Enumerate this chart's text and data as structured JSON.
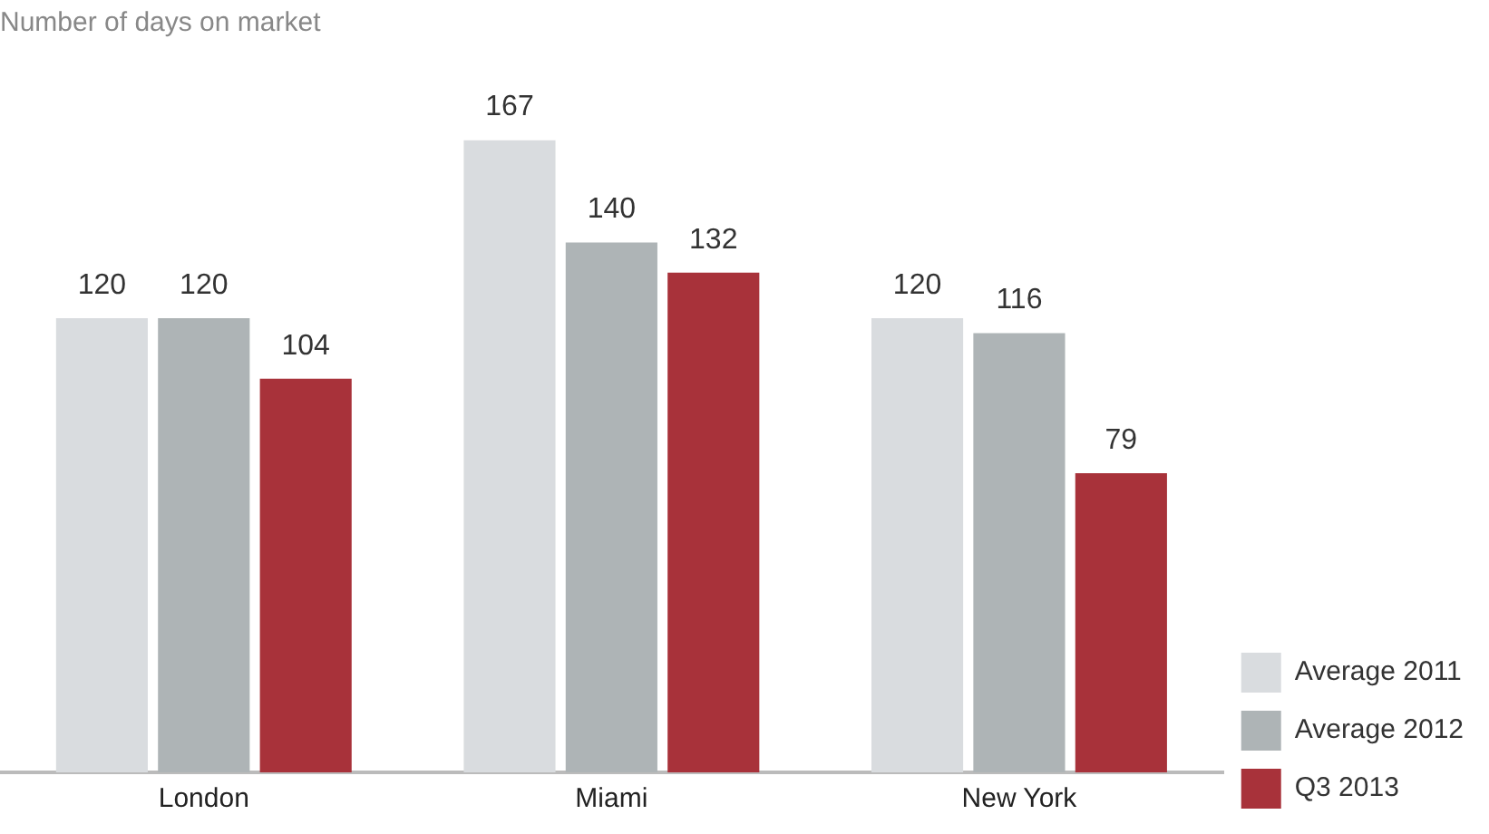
{
  "chart_data": {
    "type": "bar",
    "title": "Number of days on market",
    "categories": [
      "London",
      "Miami",
      "New York"
    ],
    "series": [
      {
        "name": "Average 2011",
        "color": "#d9dcdf",
        "values": [
          120,
          167,
          120
        ]
      },
      {
        "name": "Average 2012",
        "color": "#aeb4b6",
        "values": [
          120,
          140,
          116
        ]
      },
      {
        "name": "Q3 2013",
        "color": "#a8323a",
        "values": [
          104,
          132,
          79
        ]
      }
    ],
    "data_labels": true,
    "legend": "bottom right",
    "grid": false
  }
}
